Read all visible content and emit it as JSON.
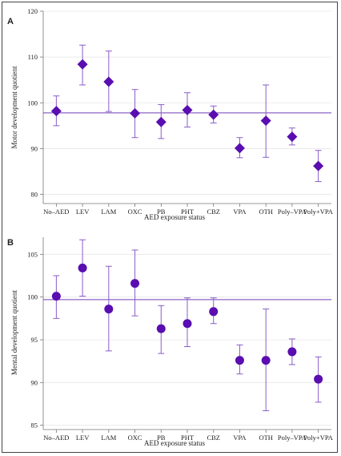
{
  "chart_data": [
    {
      "type": "scatter",
      "panel_label": "A",
      "marker": "diamond",
      "categories": [
        "No–AED",
        "LEV",
        "LAM",
        "OXC",
        "PB",
        "PHT",
        "CBZ",
        "VPA",
        "OTH",
        "Poly–VPA",
        "Poly+VPA"
      ],
      "values": [
        98.2,
        108.4,
        104.6,
        97.7,
        95.8,
        98.4,
        97.4,
        90.1,
        96.1,
        92.6,
        86.2
      ],
      "ci_low": [
        95.0,
        103.9,
        98.1,
        92.4,
        92.2,
        94.7,
        95.6,
        88.0,
        88.1,
        90.8,
        82.8
      ],
      "ci_high": [
        101.5,
        112.6,
        111.3,
        102.9,
        99.6,
        102.2,
        99.3,
        92.4,
        103.9,
        94.5,
        89.6
      ],
      "reference_line": 97.8,
      "xlabel": "AED exposure status",
      "ylabel": "Motor development quotient",
      "ylim": [
        78,
        120
      ],
      "yticks": [
        80,
        90,
        100,
        110,
        120
      ],
      "grid": true
    },
    {
      "type": "scatter",
      "panel_label": "B",
      "marker": "circle",
      "categories": [
        "No–AED",
        "LEV",
        "LAM",
        "OXC",
        "PB",
        "PHT",
        "CBZ",
        "VPA",
        "OTH",
        "Poly–VPA",
        "Poly+VPA"
      ],
      "values": [
        100.1,
        103.4,
        98.6,
        101.6,
        96.3,
        96.9,
        98.3,
        92.6,
        92.6,
        93.6,
        90.4
      ],
      "ci_low": [
        97.5,
        100.1,
        93.7,
        97.8,
        93.4,
        94.2,
        96.9,
        91.0,
        86.7,
        92.1,
        87.7
      ],
      "ci_high": [
        102.5,
        106.7,
        103.6,
        105.5,
        99.0,
        99.9,
        99.9,
        94.4,
        98.6,
        95.1,
        93.0
      ],
      "reference_line": 99.7,
      "xlabel": "AED exposure status",
      "ylabel": "Mental development quotient",
      "ylim": [
        84.5,
        107
      ],
      "yticks": [
        85,
        90,
        95,
        100,
        105
      ],
      "grid": true
    }
  ],
  "colors": {
    "marker": "#5a0db0",
    "reference_line": "#6f3fb8",
    "error_bar": "#8a5cc9"
  }
}
